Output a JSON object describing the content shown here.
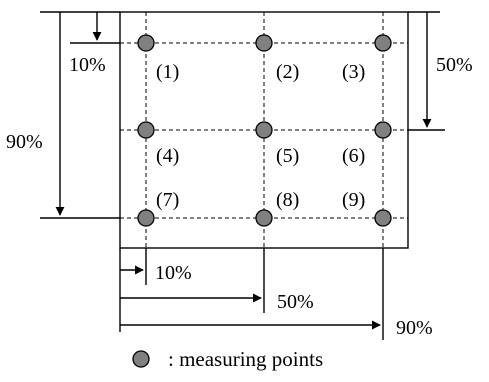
{
  "colors": {
    "point_fill": "#808080",
    "point_stroke": "#000000",
    "line": "#000000",
    "background": "#ffffff"
  },
  "grid_fractions": [
    0.1,
    0.5,
    0.9
  ],
  "top_offset_label": "10%",
  "right_offset_label": "50%",
  "left_offset_label": "90%",
  "bottom_offset_labels": [
    "10%",
    "50%",
    "90%"
  ],
  "points": [
    {
      "label": "(1)"
    },
    {
      "label": "(2)"
    },
    {
      "label": "(3)"
    },
    {
      "label": "(4)"
    },
    {
      "label": "(5)"
    },
    {
      "label": "(6)"
    },
    {
      "label": "(7)"
    },
    {
      "label": "(8)"
    },
    {
      "label": "(9)"
    }
  ],
  "legend": {
    "icon": "gray-circle-icon",
    "label": ": measuring points"
  }
}
